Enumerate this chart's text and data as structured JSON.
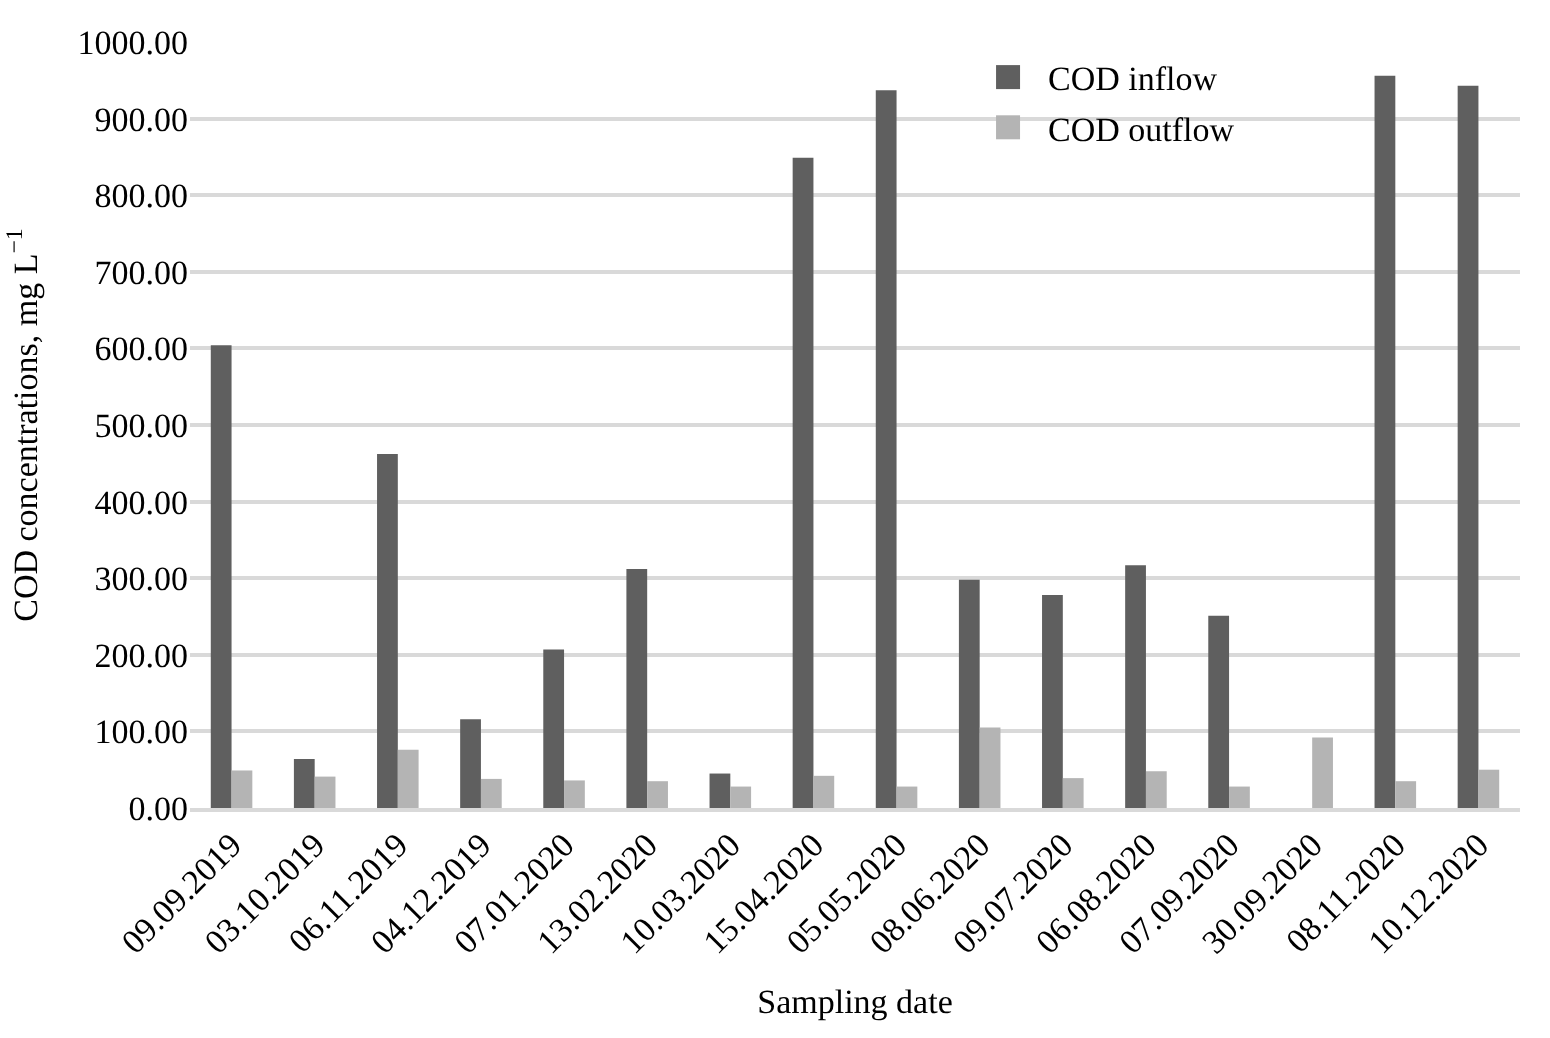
{
  "chart_data": {
    "type": "bar",
    "xlabel": "Sampling date",
    "ylabel": "COD concentrations, mg L$^{−1}$",
    "categories": [
      "09.09.2019",
      "03.10.2019",
      "06.11.2019",
      "04.12.2019",
      "07.01.2020",
      "13.02.2020",
      "10.03.2020",
      "15.04.2020",
      "05.05.2020",
      "08.06.2020",
      "09.07.2020",
      "06.08.2020",
      "07.09.2020",
      "30.09.2020",
      "08.11.2020",
      "10.12.2020"
    ],
    "series": [
      {
        "name": "COD inflow",
        "color": "#5f5f5f",
        "values": [
          604,
          64,
          462,
          116,
          207,
          312,
          45,
          849,
          937,
          298,
          278,
          317,
          251,
          null,
          956,
          943
        ]
      },
      {
        "name": "COD outflow",
        "color": "#b4b4b4",
        "values": [
          49,
          41,
          76,
          38,
          36,
          35,
          28,
          42,
          28,
          105,
          39,
          48,
          28,
          92,
          35,
          50
        ]
      }
    ],
    "ylim": [
      0,
      1000
    ],
    "yticks": [
      {
        "value": 0,
        "label": "0.00"
      },
      {
        "value": 100,
        "label": "100.00"
      },
      {
        "value": 200,
        "label": "200.00"
      },
      {
        "value": 300,
        "label": "300.00"
      },
      {
        "value": 400,
        "label": "400.00"
      },
      {
        "value": 500,
        "label": "500.00"
      },
      {
        "value": 600,
        "label": "600.00"
      },
      {
        "value": 700,
        "label": "700.00"
      },
      {
        "value": 800,
        "label": "800.00"
      },
      {
        "value": 900,
        "label": "900.00"
      },
      {
        "value": 1000,
        "label": "1000.00"
      }
    ],
    "grid": "y",
    "legend": "top"
  }
}
